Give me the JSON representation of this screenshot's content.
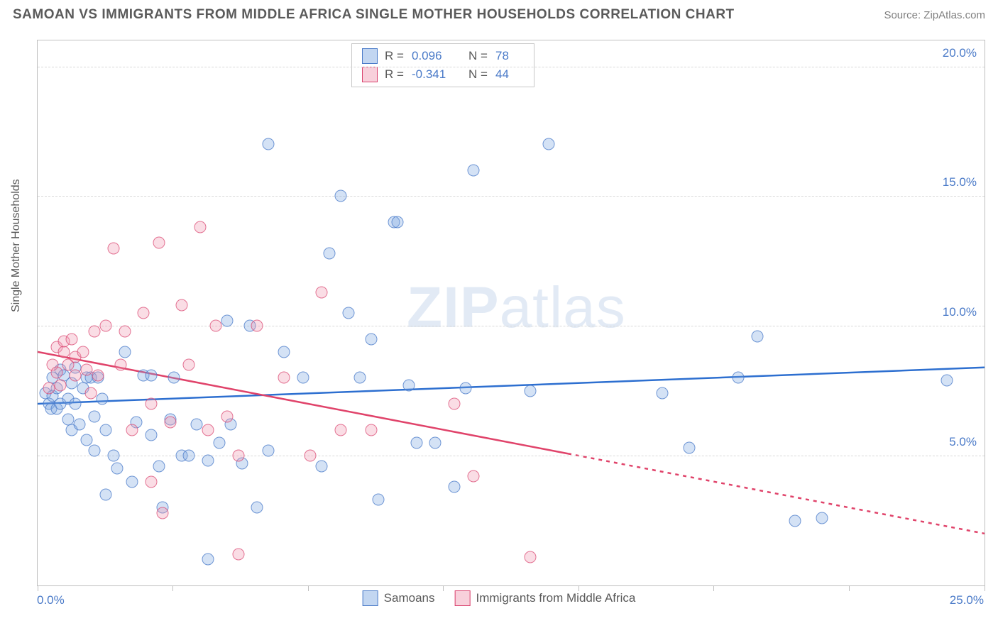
{
  "title": "SAMOAN VS IMMIGRANTS FROM MIDDLE AFRICA SINGLE MOTHER HOUSEHOLDS CORRELATION CHART",
  "source": "Source: ZipAtlas.com",
  "ylabel": "Single Mother Households",
  "watermark_bold": "ZIP",
  "watermark_rest": "atlas",
  "chart": {
    "type": "scatter-correlation",
    "background_color": "#ffffff",
    "grid_color": "#d8d8d8",
    "border_color": "#bfbfbf",
    "axis_text_color": "#4a7ac8",
    "label_color": "#5a5a5a",
    "title_fontsize": 19,
    "label_fontsize": 16,
    "tick_fontsize": 17,
    "marker_radius": 8.5,
    "line_width": 2.5,
    "xlim": [
      0,
      25
    ],
    "ylim": [
      0,
      21
    ],
    "x_ticks": [
      0,
      3.57,
      7.14,
      10.71,
      14.28,
      17.85,
      21.42,
      25
    ],
    "y_gridlines": [
      5,
      10,
      15,
      20
    ],
    "x_origin_label": "0.0%",
    "x_max_label": "25.0%",
    "y_tick_labels": {
      "5": "5.0%",
      "10": "10.0%",
      "15": "15.0%",
      "20": "20.0%"
    }
  },
  "stats_box": {
    "rows": [
      {
        "swatch": "blue",
        "r_label": "R =",
        "r_value": "0.096",
        "n_label": "N =",
        "n_value": "78"
      },
      {
        "swatch": "pink",
        "r_label": "R =",
        "r_value": "-0.341",
        "n_label": "N =",
        "n_value": "44"
      }
    ]
  },
  "legend_bottom": [
    {
      "swatch": "blue",
      "label": "Samoans"
    },
    {
      "swatch": "pink",
      "label": "Immigrants from Middle Africa"
    }
  ],
  "series": {
    "samoans": {
      "color_fill": "rgba(120,165,225,0.32)",
      "color_stroke": "rgba(74,122,200,0.75)",
      "trend": {
        "x1": 0,
        "y1": 7.0,
        "x2": 25,
        "y2": 8.4,
        "color": "#2d6fd0",
        "dash_from_x": null
      },
      "points": [
        [
          0.2,
          7.4
        ],
        [
          0.3,
          7.0
        ],
        [
          0.35,
          6.8
        ],
        [
          0.4,
          7.3
        ],
        [
          0.4,
          8.0
        ],
        [
          0.5,
          7.6
        ],
        [
          0.5,
          6.8
        ],
        [
          0.6,
          8.3
        ],
        [
          0.6,
          7.0
        ],
        [
          0.7,
          8.1
        ],
        [
          0.8,
          7.2
        ],
        [
          0.8,
          6.4
        ],
        [
          0.9,
          7.8
        ],
        [
          0.9,
          6.0
        ],
        [
          1.0,
          8.4
        ],
        [
          1.0,
          7.0
        ],
        [
          1.1,
          6.2
        ],
        [
          1.2,
          7.6
        ],
        [
          1.3,
          5.6
        ],
        [
          1.3,
          8.0
        ],
        [
          1.4,
          8.0
        ],
        [
          1.5,
          5.2
        ],
        [
          1.5,
          6.5
        ],
        [
          1.6,
          8.0
        ],
        [
          1.7,
          7.2
        ],
        [
          1.8,
          3.5
        ],
        [
          1.8,
          6.0
        ],
        [
          2.0,
          5.0
        ],
        [
          2.1,
          4.5
        ],
        [
          2.3,
          9.0
        ],
        [
          2.5,
          4.0
        ],
        [
          2.6,
          6.3
        ],
        [
          2.8,
          8.1
        ],
        [
          3.0,
          5.8
        ],
        [
          3.0,
          8.1
        ],
        [
          3.2,
          4.6
        ],
        [
          3.3,
          3.0
        ],
        [
          3.5,
          6.4
        ],
        [
          3.6,
          8.0
        ],
        [
          3.8,
          5.0
        ],
        [
          4.0,
          5.0
        ],
        [
          4.2,
          6.2
        ],
        [
          4.5,
          1.0
        ],
        [
          4.5,
          4.8
        ],
        [
          4.8,
          5.5
        ],
        [
          5.0,
          10.2
        ],
        [
          5.1,
          6.2
        ],
        [
          5.4,
          4.7
        ],
        [
          5.6,
          10.0
        ],
        [
          5.8,
          3.0
        ],
        [
          6.1,
          5.2
        ],
        [
          6.1,
          17.0
        ],
        [
          6.5,
          9.0
        ],
        [
          7.0,
          8.0
        ],
        [
          7.5,
          4.6
        ],
        [
          7.7,
          12.8
        ],
        [
          8.0,
          15.0
        ],
        [
          8.2,
          10.5
        ],
        [
          8.5,
          8.0
        ],
        [
          8.8,
          9.5
        ],
        [
          9.0,
          3.3
        ],
        [
          9.4,
          14.0
        ],
        [
          9.5,
          14.0
        ],
        [
          9.8,
          7.7
        ],
        [
          10.0,
          5.5
        ],
        [
          10.5,
          5.5
        ],
        [
          11.0,
          3.8
        ],
        [
          11.3,
          7.6
        ],
        [
          11.5,
          16.0
        ],
        [
          13.0,
          7.5
        ],
        [
          13.5,
          17.0
        ],
        [
          16.5,
          7.4
        ],
        [
          17.2,
          5.3
        ],
        [
          18.5,
          8.0
        ],
        [
          19.0,
          9.6
        ],
        [
          20.0,
          2.5
        ],
        [
          20.7,
          2.6
        ],
        [
          24.0,
          7.9
        ]
      ]
    },
    "middle_africa": {
      "color_fill": "rgba(240,150,175,0.32)",
      "color_stroke": "rgba(217,65,109,0.7)",
      "trend": {
        "x1": 0,
        "y1": 9.0,
        "x2": 25,
        "y2": 2.0,
        "color": "#e0436a",
        "dash_from_x": 14.0
      },
      "points": [
        [
          0.3,
          7.6
        ],
        [
          0.4,
          8.5
        ],
        [
          0.5,
          8.2
        ],
        [
          0.5,
          9.2
        ],
        [
          0.6,
          7.7
        ],
        [
          0.7,
          9.0
        ],
        [
          0.7,
          9.4
        ],
        [
          0.8,
          8.5
        ],
        [
          0.9,
          9.5
        ],
        [
          1.0,
          8.8
        ],
        [
          1.0,
          8.1
        ],
        [
          1.2,
          9.0
        ],
        [
          1.3,
          8.3
        ],
        [
          1.4,
          7.4
        ],
        [
          1.5,
          9.8
        ],
        [
          1.6,
          8.1
        ],
        [
          1.8,
          10.0
        ],
        [
          2.0,
          13.0
        ],
        [
          2.2,
          8.5
        ],
        [
          2.3,
          9.8
        ],
        [
          2.5,
          6.0
        ],
        [
          2.8,
          10.5
        ],
        [
          3.0,
          7.0
        ],
        [
          3.0,
          4.0
        ],
        [
          3.2,
          13.2
        ],
        [
          3.3,
          2.8
        ],
        [
          3.5,
          6.3
        ],
        [
          3.8,
          10.8
        ],
        [
          4.0,
          8.5
        ],
        [
          4.3,
          13.8
        ],
        [
          4.5,
          6.0
        ],
        [
          4.7,
          10.0
        ],
        [
          5.0,
          6.5
        ],
        [
          5.3,
          5.0
        ],
        [
          5.3,
          1.2
        ],
        [
          5.8,
          10.0
        ],
        [
          6.5,
          8.0
        ],
        [
          7.2,
          5.0
        ],
        [
          7.5,
          11.3
        ],
        [
          8.0,
          6.0
        ],
        [
          8.8,
          6.0
        ],
        [
          11.0,
          7.0
        ],
        [
          11.5,
          4.2
        ],
        [
          13.0,
          1.1
        ]
      ]
    }
  }
}
